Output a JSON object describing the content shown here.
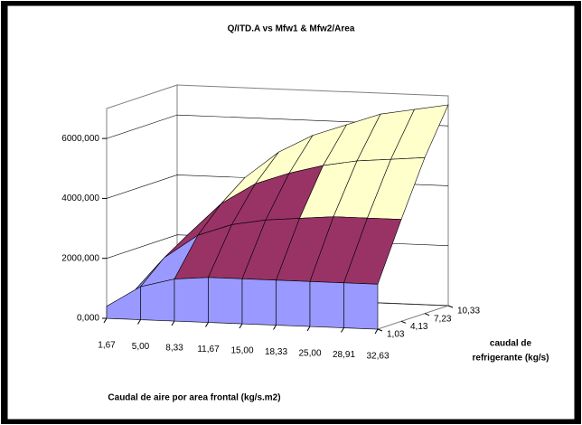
{
  "chart_data": {
    "type": "surface",
    "title": "Q/ITD.A vs Mfw1 & Mfw2/Area",
    "x_title": "Caudal de aire por area frontal (kg/s.m2)",
    "y_title_lines": [
      "caudal de",
      "refrigerante (kg/s)"
    ],
    "x": [
      "1,67",
      "5,00",
      "8,33",
      "11,67",
      "15,00",
      "18,33",
      "25,00",
      "28,91",
      "32,63"
    ],
    "y": [
      "1,03",
      "4,13",
      "7,23",
      "10,33"
    ],
    "z": [
      [
        400,
        1100,
        1400,
        1500,
        1500,
        1500,
        1500,
        1500,
        1500
      ],
      [
        500,
        1800,
        2600,
        3000,
        3200,
        3300,
        3400,
        3400,
        3400
      ],
      [
        550,
        2300,
        3400,
        4100,
        4500,
        4800,
        5000,
        5100,
        5200
      ],
      [
        600,
        2700,
        4000,
        4900,
        5500,
        5900,
        6300,
        6500,
        6700
      ]
    ],
    "zlim": [
      0,
      7000
    ],
    "zticks": [
      {
        "value": 0,
        "label": "0,000"
      },
      {
        "value": 2000,
        "label": "2000,000"
      },
      {
        "value": 4000,
        "label": "4000,000"
      },
      {
        "value": 6000,
        "label": "6000,000"
      }
    ],
    "band_colors": [
      "#9999ff",
      "#993366",
      "#ffffcc",
      "#ccffff"
    ],
    "grid": true
  }
}
